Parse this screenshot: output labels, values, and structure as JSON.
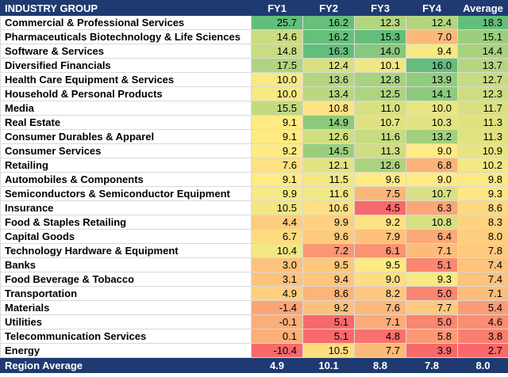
{
  "chart_data": {
    "type": "table",
    "columns": [
      "INDUSTRY GROUP",
      "FY1",
      "FY2",
      "FY3",
      "FY4",
      "Average"
    ],
    "rows": [
      {
        "name": "Commercial & Professional Services",
        "values": [
          25.7,
          16.2,
          12.3,
          12.4,
          18.3
        ]
      },
      {
        "name": "Pharmaceuticals Biotechnology & Life Sciences",
        "values": [
          14.6,
          16.2,
          15.3,
          7.0,
          15.1
        ]
      },
      {
        "name": "Software & Services",
        "values": [
          14.8,
          16.3,
          14.0,
          9.4,
          14.4
        ]
      },
      {
        "name": "Diversified Financials",
        "values": [
          17.5,
          12.4,
          10.1,
          16.0,
          13.7
        ]
      },
      {
        "name": "Health Care Equipment & Services",
        "values": [
          10.0,
          13.6,
          12.8,
          13.9,
          12.7
        ]
      },
      {
        "name": "Household & Personal Products",
        "values": [
          10.0,
          13.4,
          12.5,
          14.1,
          12.3
        ]
      },
      {
        "name": "Media",
        "values": [
          15.5,
          10.8,
          11.0,
          10.0,
          11.7
        ]
      },
      {
        "name": "Real Estate",
        "values": [
          9.1,
          14.9,
          10.7,
          10.3,
          11.3
        ]
      },
      {
        "name": "Consumer Durables & Apparel",
        "values": [
          9.1,
          12.6,
          11.6,
          13.2,
          11.3
        ]
      },
      {
        "name": "Consumer Services",
        "values": [
          9.2,
          14.5,
          11.3,
          9.0,
          10.9
        ]
      },
      {
        "name": "Retailing",
        "values": [
          7.6,
          12.1,
          12.6,
          6.8,
          10.2
        ]
      },
      {
        "name": "Automobiles & Components",
        "values": [
          9.1,
          11.5,
          9.6,
          9.0,
          9.8
        ]
      },
      {
        "name": "Semiconductors & Semiconductor Equipment",
        "values": [
          9.9,
          11.6,
          7.5,
          10.7,
          9.3
        ]
      },
      {
        "name": "Insurance",
        "values": [
          10.5,
          10.6,
          4.5,
          6.3,
          8.6
        ]
      },
      {
        "name": "Food & Staples Retailing",
        "values": [
          4.4,
          9.9,
          9.2,
          10.8,
          8.3
        ]
      },
      {
        "name": "Capital Goods",
        "values": [
          6.7,
          9.6,
          7.9,
          6.4,
          8.0
        ]
      },
      {
        "name": "Technology Hardware & Equipment",
        "values": [
          10.4,
          7.2,
          6.1,
          7.1,
          7.8
        ]
      },
      {
        "name": "Banks",
        "values": [
          3.0,
          9.5,
          9.5,
          5.1,
          7.4
        ]
      },
      {
        "name": "Food Beverage & Tobacco",
        "values": [
          3.1,
          9.4,
          9.0,
          9.3,
          7.4
        ]
      },
      {
        "name": "Transportation",
        "values": [
          4.9,
          8.6,
          8.2,
          5.0,
          7.1
        ]
      },
      {
        "name": "Materials",
        "values": [
          -1.4,
          9.2,
          7.6,
          7.7,
          5.4
        ]
      },
      {
        "name": "Utilities",
        "values": [
          -0.1,
          5.1,
          7.1,
          5.0,
          4.6
        ]
      },
      {
        "name": "Telecommunication Services",
        "values": [
          0.1,
          5.1,
          4.8,
          5.8,
          3.8
        ]
      },
      {
        "name": "Energy",
        "values": [
          -10.4,
          10.5,
          7.7,
          3.9,
          2.7
        ]
      }
    ],
    "footer": {
      "name": "Region Average",
      "values": [
        4.9,
        10.1,
        8.8,
        7.8,
        8.0
      ]
    },
    "color_scale": {
      "low": "#f8696b",
      "mid": "#ffeb84",
      "high": "#63be7b"
    },
    "header_color": "#1f3a70"
  }
}
